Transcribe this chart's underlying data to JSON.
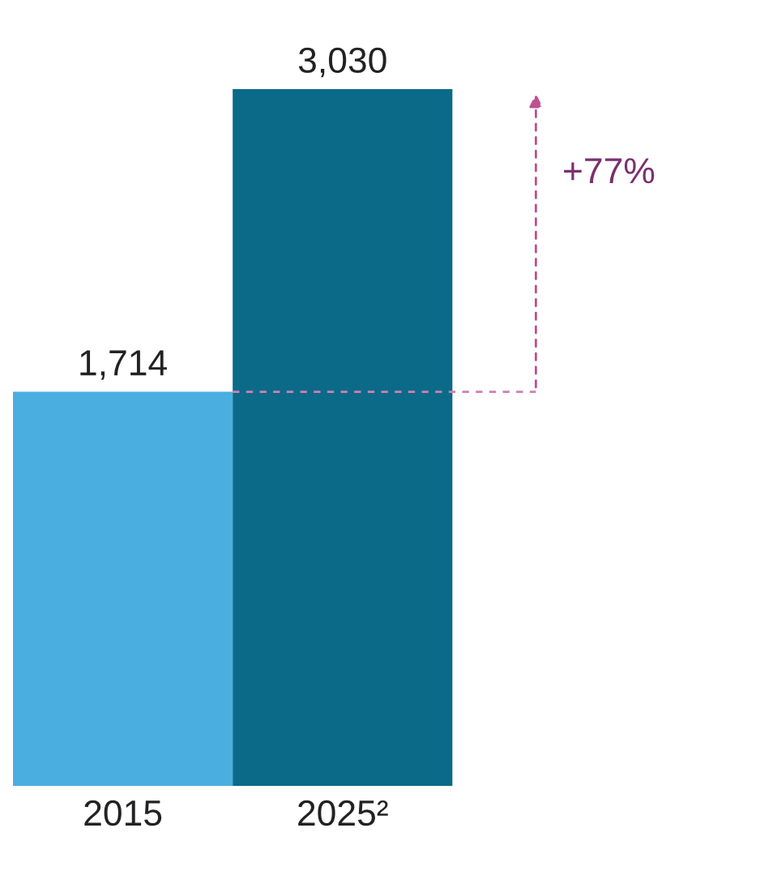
{
  "chart_data": {
    "type": "bar",
    "categories": [
      "2015",
      "2025²"
    ],
    "values": [
      1714,
      3030
    ],
    "colors": [
      "#4aaee0",
      "#0b6a88"
    ],
    "value_labels": [
      "1,714",
      "3,030"
    ],
    "annotations": [
      "+77%"
    ],
    "ref_lines": [
      {
        "axis": "y",
        "value": 1714,
        "color": "#d080b0",
        "line_style": "dashed"
      }
    ],
    "grid": false,
    "legend": false,
    "tick_labels": "x"
  }
}
